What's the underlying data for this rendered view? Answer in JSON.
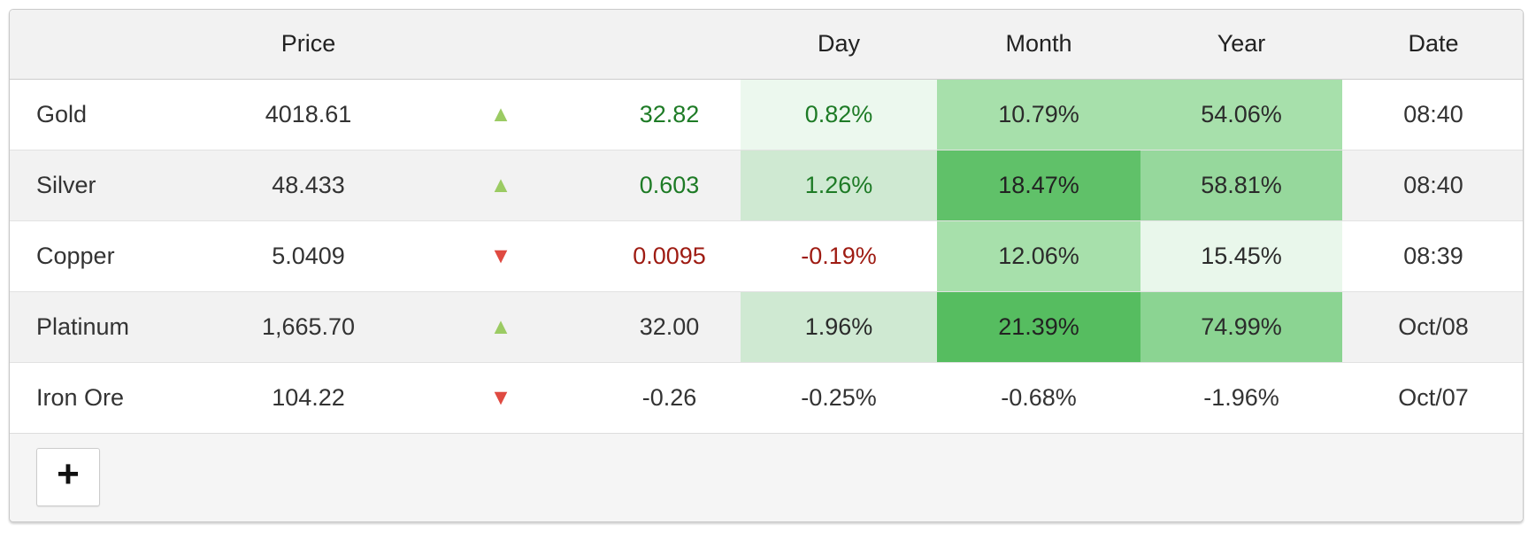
{
  "header": {
    "name": "",
    "price": "Price",
    "arrow": "",
    "change": "",
    "day": "Day",
    "month": "Month",
    "year": "Year",
    "date": "Date"
  },
  "rows": [
    {
      "name": "Gold",
      "price": "4018.61",
      "arrow": {
        "glyph": "▲",
        "color": "#9bcb63",
        "direction": "up"
      },
      "change": {
        "text": "32.82",
        "color": "#1e7b26"
      },
      "day": {
        "text": "0.82%",
        "bg": "#ecf8ee",
        "color": "#1e7b26"
      },
      "month": {
        "text": "10.79%",
        "bg": "#a7e0ab",
        "color": "#2b2b2b"
      },
      "year": {
        "text": "54.06%",
        "bg": "#a7e0ab",
        "color": "#2b2b2b"
      },
      "date": "08:40"
    },
    {
      "name": "Silver",
      "price": "48.433",
      "arrow": {
        "glyph": "▲",
        "color": "#9bcb63",
        "direction": "up"
      },
      "change": {
        "text": "0.603",
        "color": "#1e7b26"
      },
      "day": {
        "text": "1.26%",
        "bg": "#cfe9d2",
        "color": "#1e7b26"
      },
      "month": {
        "text": "18.47%",
        "bg": "#60c169",
        "color": "#222222"
      },
      "year": {
        "text": "58.81%",
        "bg": "#96d89c",
        "color": "#2b2b2b"
      },
      "date": "08:40"
    },
    {
      "name": "Copper",
      "price": "5.0409",
      "arrow": {
        "glyph": "▼",
        "color": "#df4a41",
        "direction": "down"
      },
      "change": {
        "text": "0.0095",
        "color": "#9e1b12"
      },
      "day": {
        "text": "-0.19%",
        "color": "#9e1b12"
      },
      "month": {
        "text": "12.06%",
        "bg": "#a7e0ab",
        "color": "#2b2b2b"
      },
      "year": {
        "text": "15.45%",
        "bg": "#e9f7eb",
        "color": "#2b2b2b"
      },
      "date": "08:39"
    },
    {
      "name": "Platinum",
      "price": "1,665.70",
      "arrow": {
        "glyph": "▲",
        "color": "#9bcb63",
        "direction": "up"
      },
      "change": {
        "text": "32.00",
        "color": "#333333"
      },
      "day": {
        "text": "1.96%",
        "bg": "#cfe9d2",
        "color": "#2b2b2b"
      },
      "month": {
        "text": "21.39%",
        "bg": "#56bd60",
        "color": "#222222"
      },
      "year": {
        "text": "74.99%",
        "bg": "#8bd492",
        "color": "#2b2b2b"
      },
      "date": "Oct/08"
    },
    {
      "name": "Iron Ore",
      "price": "104.22",
      "arrow": {
        "glyph": "▼",
        "color": "#df4a41",
        "direction": "down"
      },
      "change": {
        "text": "-0.26",
        "color": "#333333"
      },
      "day": {
        "text": "-0.25%",
        "color": "#333333"
      },
      "month": {
        "text": "-0.68%",
        "color": "#333333"
      },
      "year": {
        "text": "-1.96%",
        "color": "#333333"
      },
      "date": "Oct/07"
    }
  ],
  "footer": {
    "add_button": "+"
  },
  "colors": {
    "up_arrow": "#9bcb63",
    "down_arrow": "#df4a41",
    "positive_text": "#1e7b26",
    "negative_text": "#9e1b12",
    "header_bg": "#f2f2f2",
    "zebra_bg": "#f2f2f2",
    "footer_bg": "#f5f5f5",
    "border": "#c9c9c9"
  }
}
